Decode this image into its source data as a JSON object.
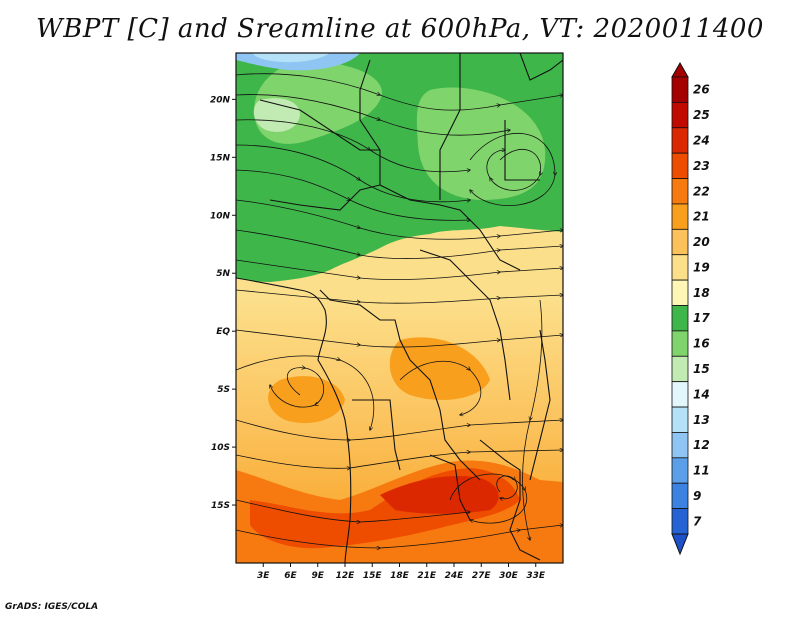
{
  "title": "WBPT [C] and Sreamline at 600hPa, VT: 2020011400",
  "credit": "GrADS: IGES/COLA",
  "map": {
    "lat_range": [
      -20,
      24
    ],
    "lon_range": [
      0,
      36
    ],
    "lat_ticks": [
      {
        "value": 20,
        "label": "20N"
      },
      {
        "value": 15,
        "label": "15N"
      },
      {
        "value": 10,
        "label": "10N"
      },
      {
        "value": 5,
        "label": "5N"
      },
      {
        "value": 0,
        "label": "EQ"
      },
      {
        "value": -5,
        "label": "5S"
      },
      {
        "value": -10,
        "label": "10S"
      },
      {
        "value": -15,
        "label": "15S"
      }
    ],
    "lon_ticks": [
      {
        "value": 3,
        "label": "3E"
      },
      {
        "value": 6,
        "label": "6E"
      },
      {
        "value": 9,
        "label": "9E"
      },
      {
        "value": 12,
        "label": "12E"
      },
      {
        "value": 15,
        "label": "15E"
      },
      {
        "value": 18,
        "label": "18E"
      },
      {
        "value": 21,
        "label": "21E"
      },
      {
        "value": 24,
        "label": "24E"
      },
      {
        "value": 27,
        "label": "27E"
      },
      {
        "value": 30,
        "label": "30E"
      },
      {
        "value": 33,
        "label": "33E"
      }
    ]
  },
  "colorbar": {
    "levels": [
      {
        "label": "26",
        "color": "#a50000"
      },
      {
        "label": "25",
        "color": "#c00a00"
      },
      {
        "label": "24",
        "color": "#dc2800"
      },
      {
        "label": "23",
        "color": "#ee4d00"
      },
      {
        "label": "22",
        "color": "#f77a10"
      },
      {
        "label": "21",
        "color": "#f99f1e"
      },
      {
        "label": "20",
        "color": "#fbc15a"
      },
      {
        "label": "19",
        "color": "#fcdf8a"
      },
      {
        "label": "18",
        "color": "#fdf6b4"
      },
      {
        "label": "17",
        "color": "#3fb64a"
      },
      {
        "label": "16",
        "color": "#7fd46c"
      },
      {
        "label": "15",
        "color": "#c2ebb3"
      },
      {
        "label": "14",
        "color": "#e2f6fb"
      },
      {
        "label": "13",
        "color": "#b4e0f8"
      },
      {
        "label": "12",
        "color": "#8ec5f2"
      },
      {
        "label": "11",
        "color": "#5a9fe8"
      },
      {
        "label": "9",
        "color": "#3c82e0"
      },
      {
        "label": "7",
        "color": "#2563d4"
      }
    ],
    "top_color": "#a50000",
    "bottom_color": "#1e50c8"
  }
}
